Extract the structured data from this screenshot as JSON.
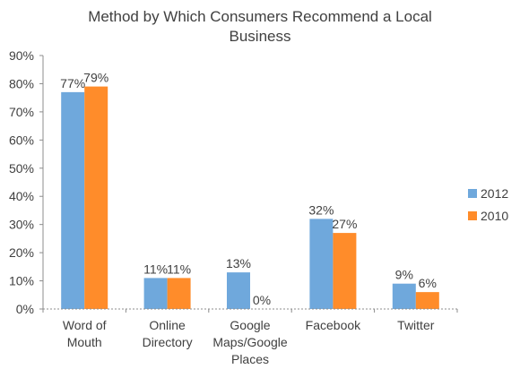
{
  "chart_data": {
    "type": "bar",
    "title_lines": [
      "Method by Which Consumers Recommend a Local",
      "Business"
    ],
    "categories": [
      [
        "Word of",
        "Mouth"
      ],
      [
        "Online",
        "Directory"
      ],
      [
        "Google",
        "Maps/Google",
        "Places"
      ],
      [
        "Facebook"
      ],
      [
        "Twitter"
      ]
    ],
    "series": [
      {
        "name": "2012",
        "color": "#6fa8dc",
        "values": [
          77,
          11,
          13,
          32,
          9
        ],
        "labels": [
          "77%",
          "11%",
          "13%",
          "32%",
          "9%"
        ]
      },
      {
        "name": "2010",
        "color": "#ff8c2a",
        "values": [
          79,
          11,
          0,
          27,
          6
        ],
        "labels": [
          "79%",
          "11%",
          "0%",
          "27%",
          "6%"
        ]
      }
    ],
    "y_ticks": [
      "0%",
      "10%",
      "20%",
      "30%",
      "40%",
      "50%",
      "60%",
      "70%",
      "80%",
      "90%"
    ],
    "ylim": [
      0,
      90
    ],
    "legend_position": "right",
    "grid": false
  }
}
